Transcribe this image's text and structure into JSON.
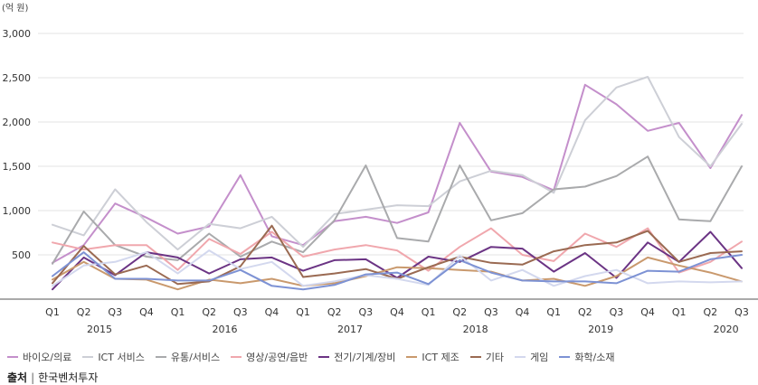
{
  "chart_data": {
    "type": "line",
    "unit_label": "(억 원)",
    "categories": [
      "Q1",
      "Q2",
      "Q3",
      "Q4",
      "Q1",
      "Q2",
      "Q3",
      "Q4",
      "Q1",
      "Q2",
      "Q3",
      "Q4",
      "Q1",
      "Q2",
      "Q3",
      "Q4",
      "Q1",
      "Q2",
      "Q3",
      "Q4",
      "Q1",
      "Q2",
      "Q3"
    ],
    "years": [
      {
        "label": "2015",
        "at_index": 1
      },
      {
        "label": "2016",
        "at_index": 5
      },
      {
        "label": "2017",
        "at_index": 9
      },
      {
        "label": "2018",
        "at_index": 13
      },
      {
        "label": "2019",
        "at_index": 17
      },
      {
        "label": "2020",
        "at_index": 21
      }
    ],
    "ylim": [
      0,
      3000
    ],
    "yticks": [
      {
        "value": 500,
        "label": "500"
      },
      {
        "value": 1000,
        "label": "1,000"
      },
      {
        "value": 1500,
        "label": "1,500"
      },
      {
        "value": 2000,
        "label": "2,000"
      },
      {
        "value": 2500,
        "label": "2,500"
      },
      {
        "value": 3000,
        "label": "3,000"
      }
    ],
    "grid": true,
    "legend_position": "bottom",
    "series": [
      {
        "name": "바이오/의료",
        "color": "#c48fcb",
        "values": [
          410,
          610,
          1080,
          920,
          740,
          820,
          1400,
          710,
          610,
          880,
          930,
          860,
          980,
          1990,
          1440,
          1380,
          1230,
          2420,
          2200,
          1900,
          1990,
          1480,
          2080
        ]
      },
      {
        "name": "ICT 서비스",
        "color": "#cdcfd6",
        "values": [
          840,
          720,
          1240,
          870,
          560,
          850,
          800,
          930,
          590,
          960,
          1010,
          1060,
          1050,
          1330,
          1450,
          1400,
          1200,
          2020,
          2390,
          2510,
          1830,
          1500,
          1980
        ]
      },
      {
        "name": "유통/서비스",
        "color": "#a9aaac",
        "values": [
          400,
          990,
          610,
          480,
          440,
          740,
          480,
          650,
          530,
          890,
          1510,
          690,
          650,
          1510,
          890,
          970,
          1240,
          1270,
          1390,
          1610,
          900,
          880,
          1500
        ]
      },
      {
        "name": "영상/공연/음반",
        "color": "#f0a7ad",
        "values": [
          640,
          560,
          610,
          610,
          330,
          680,
          510,
          760,
          480,
          560,
          610,
          550,
          320,
          590,
          800,
          500,
          430,
          740,
          590,
          800,
          300,
          420,
          650
        ]
      },
      {
        "name": "전기/기계/장비",
        "color": "#6b3484",
        "values": [
          110,
          470,
          270,
          530,
          470,
          290,
          450,
          470,
          320,
          440,
          450,
          240,
          480,
          420,
          590,
          570,
          310,
          520,
          240,
          640,
          420,
          760,
          350
        ]
      },
      {
        "name": "ICT 제조",
        "color": "#c9996d",
        "values": [
          220,
          420,
          230,
          220,
          110,
          220,
          180,
          230,
          150,
          180,
          260,
          360,
          350,
          330,
          310,
          210,
          230,
          150,
          260,
          470,
          380,
          300,
          200
        ]
      },
      {
        "name": "기타",
        "color": "#9a6a52",
        "values": [
          180,
          600,
          280,
          380,
          170,
          200,
          370,
          830,
          250,
          290,
          340,
          230,
          360,
          480,
          410,
          390,
          540,
          610,
          640,
          770,
          420,
          520,
          540
        ]
      },
      {
        "name": "게임",
        "color": "#d3d8ee",
        "values": [
          150,
          380,
          420,
          530,
          290,
          550,
          340,
          420,
          150,
          200,
          270,
          230,
          160,
          490,
          210,
          330,
          150,
          260,
          330,
          180,
          200,
          190,
          200
        ]
      },
      {
        "name": "화학/소재",
        "color": "#7d92d4",
        "values": [
          260,
          530,
          230,
          230,
          210,
          210,
          330,
          150,
          110,
          160,
          280,
          300,
          170,
          440,
          300,
          210,
          200,
          200,
          180,
          320,
          310,
          450,
          500
        ]
      }
    ]
  },
  "source": {
    "label": "출처",
    "text": "한국벤처투자"
  }
}
